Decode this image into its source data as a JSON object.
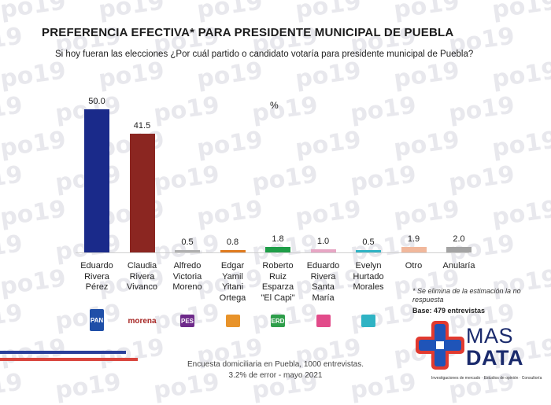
{
  "header": {
    "title": "PREFERENCIA EFECTIVA* PARA PRESIDENTE MUNICIPAL DE PUEBLA",
    "subtitle": "Si hoy fueran las elecciones ¿Por cuál partido o candidato votaría para presidente municipal de Puebla?"
  },
  "chart_data": {
    "type": "bar",
    "title": "PREFERENCIA EFECTIVA* PARA PRESIDENTE MUNICIPAL DE PUEBLA",
    "unit": "%",
    "ylim": [
      0,
      50
    ],
    "grid": false,
    "categories": [
      [
        "Eduardo",
        "Rivera",
        "Pérez"
      ],
      [
        "Claudia",
        "Rivera",
        "Vivanco"
      ],
      [
        "Alfredo",
        "Victoria",
        "Moreno"
      ],
      [
        "Edgar",
        "Yamil",
        "Yitani",
        "Ortega"
      ],
      [
        "Roberto",
        "Ruiz",
        "Esparza",
        "\"El Capi\""
      ],
      [
        "Eduardo",
        "Rivera",
        "Santa",
        "María"
      ],
      [
        "Evelyn",
        "Hurtado",
        "Morales"
      ],
      [
        "Otro"
      ],
      [
        "Anularía"
      ]
    ],
    "values": [
      50.0,
      41.5,
      0.5,
      0.8,
      1.8,
      1.0,
      0.5,
      1.9,
      2.0
    ],
    "value_labels": [
      "50.0",
      "41.5",
      "0.5",
      "0.8",
      "1.8",
      "1.0",
      "0.5",
      "1.9",
      "2.0"
    ],
    "colors": [
      "#1a2a8a",
      "#8b2621",
      "#b0b0b0",
      "#e07b1f",
      "#1f9e48",
      "#e7a6c4",
      "#2fb3c4",
      "#f1b89c",
      "#a3a3a3"
    ]
  },
  "party_logos": [
    {
      "name": "pan-pri-prd-logo",
      "label": "PAN",
      "color": "#1f4fa8"
    },
    {
      "name": "morena-logo",
      "label": "morena",
      "color": "#a62523"
    },
    {
      "name": "pes-logo",
      "label": "PES",
      "color": "#6e2a8a"
    },
    {
      "name": "fuerza-mexico-logo",
      "label": "",
      "color": "#e8932a"
    },
    {
      "name": "verde-logo",
      "label": "VERDE",
      "color": "#2e9e4a"
    },
    {
      "name": "pacto-social-logo",
      "label": "",
      "color": "#e24b8a"
    },
    {
      "name": "movimiento-ciudadano-logo",
      "label": "",
      "color": "#2fb3c4"
    }
  ],
  "notes": {
    "note": "* Se elimina de la estimación la no respuesta",
    "base": "Base: 479 entrevistas"
  },
  "footer": {
    "line1": "Encuesta domiciliaria en Puebla, 1000 entrevistas.",
    "line2": "3.2% de error - mayo 2021"
  },
  "brand": {
    "mas": "MAS",
    "data": "DATA",
    "tagline": "Investigaciones de mercado · Estudios de opinión · Consultoría"
  },
  "watermark": "po19"
}
